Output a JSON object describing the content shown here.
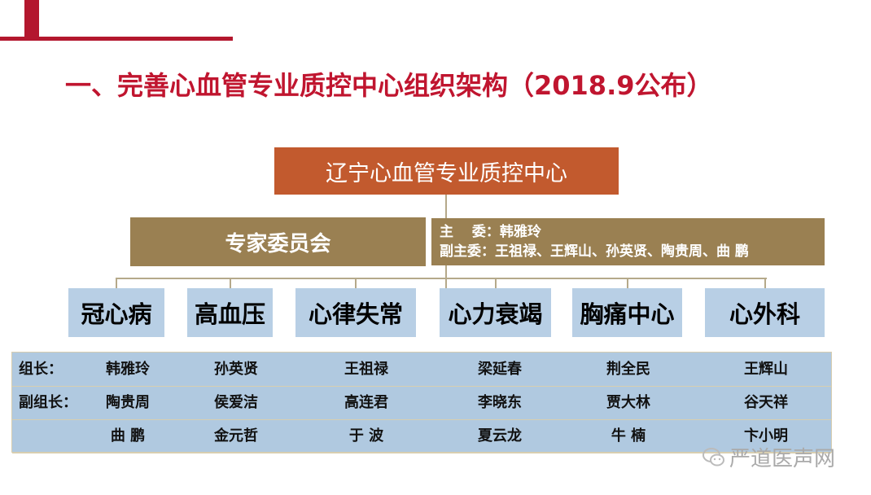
{
  "title": "一、完善心血管专业质控中心组织架构（2018.9公布）",
  "center": "辽宁心血管专业质控中心",
  "expert_committee": "专家委员会",
  "committee_info": {
    "chair": "主　 委：韩雅玲",
    "vice_chair": "副主委：王祖禄、王辉山、孙英贤、陶贵周、曲 鹏"
  },
  "categories": [
    "冠心病",
    "高血压",
    "心律失常",
    "心力衰竭",
    "胸痛中心",
    "心外科"
  ],
  "table": {
    "rows": [
      {
        "label": "组长：",
        "values": [
          "韩雅玲",
          "孙英贤",
          "王祖禄",
          "梁延春",
          "荆全民",
          "王辉山"
        ]
      },
      {
        "label": "副组长：",
        "values": [
          "陶贵周",
          "侯爱洁",
          "高连君",
          "李晓东",
          "贾大林",
          "谷天祥"
        ]
      },
      {
        "label": "",
        "values": [
          "曲 鹏",
          "金元哲",
          "于 波",
          "夏云龙",
          "牛 楠",
          "卞小明"
        ]
      }
    ]
  },
  "watermark": "严道医声网",
  "colors": {
    "title": "#c0152f",
    "center_box": "#c25a2e",
    "committee_box": "#9a8052",
    "category_box": "#b8cfe5",
    "table": "#b0c9e0"
  }
}
